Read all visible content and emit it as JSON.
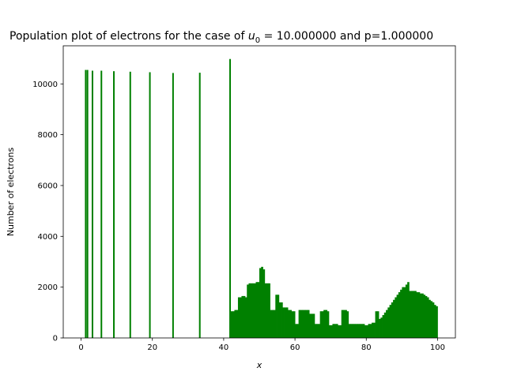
{
  "chart_data": {
    "type": "bar",
    "title_prefix": "Population plot of electrons for the case of ",
    "title_math_var": "u",
    "title_math_sub": "0",
    "title_suffix": " = 10.000000 and p=1.000000",
    "xlabel": "x",
    "ylabel": "Number of electrons",
    "xlim": [
      -5,
      105
    ],
    "ylim": [
      0,
      11500
    ],
    "xticks": [
      0,
      20,
      40,
      60,
      80,
      100
    ],
    "yticks": [
      0,
      2000,
      4000,
      6000,
      8000,
      10000
    ],
    "bar_color": "#008000",
    "grid": false,
    "spikes": [
      {
        "x": 1.3,
        "value": 10550
      },
      {
        "x": 1.8,
        "value": 10550
      },
      {
        "x": 3.2,
        "value": 10520
      },
      {
        "x": 5.7,
        "value": 10520
      },
      {
        "x": 9.2,
        "value": 10500
      },
      {
        "x": 13.8,
        "value": 10480
      },
      {
        "x": 19.3,
        "value": 10460
      },
      {
        "x": 25.8,
        "value": 10430
      },
      {
        "x": 33.3,
        "value": 10440
      },
      {
        "x": 41.8,
        "value": 10980
      }
    ],
    "bins": {
      "start": 42.0,
      "width": 0.5,
      "values": [
        1050,
        1050,
        1100,
        1100,
        1600,
        1600,
        1650,
        1650,
        1600,
        2100,
        2150,
        2150,
        2150,
        2150,
        2200,
        2200,
        2750,
        2800,
        2700,
        2150,
        2150,
        2150,
        1100,
        1100,
        1100,
        1700,
        1700,
        1400,
        1400,
        1200,
        1200,
        1200,
        1100,
        1100,
        1050,
        1050,
        550,
        550,
        1100,
        1100,
        1100,
        1100,
        1100,
        1100,
        950,
        950,
        950,
        550,
        550,
        550,
        1050,
        1050,
        1100,
        1100,
        1050,
        500,
        500,
        550,
        550,
        550,
        500,
        500,
        1100,
        1100,
        1100,
        1050,
        550,
        550,
        550,
        550,
        550,
        550,
        550,
        550,
        550,
        500,
        500,
        550,
        550,
        600,
        600,
        1050,
        1050,
        750,
        800,
        900,
        1000,
        1100,
        1200,
        1300,
        1400,
        1500,
        1600,
        1700,
        1800,
        1900,
        2000,
        2000,
        2100,
        2200,
        1850,
        1850,
        1850,
        1850,
        1800,
        1800,
        1750,
        1750,
        1700,
        1650,
        1600,
        1500,
        1450,
        1400,
        1300,
        1250
      ]
    }
  }
}
